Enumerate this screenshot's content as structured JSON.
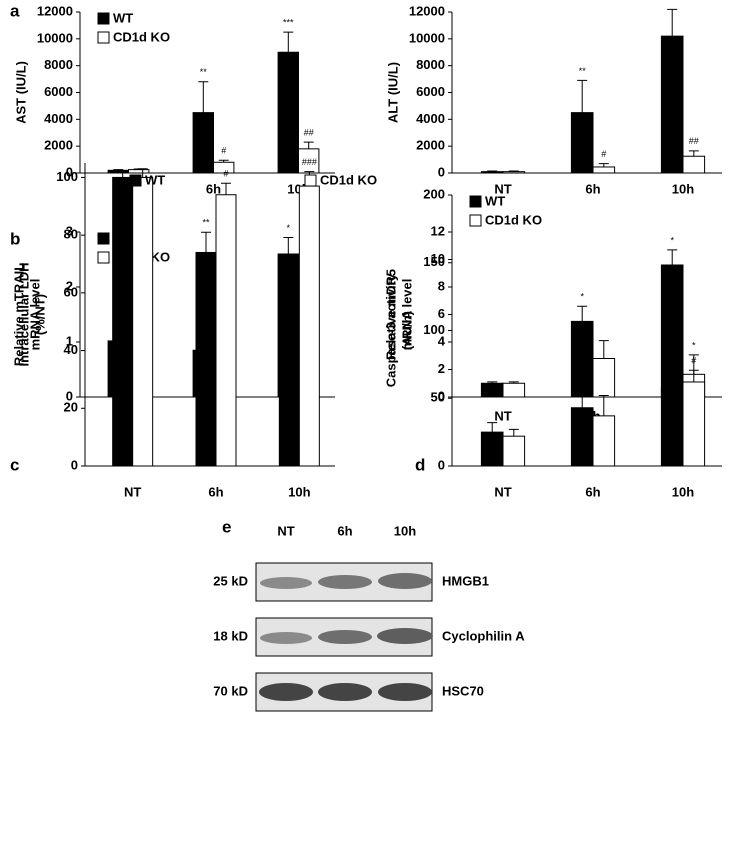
{
  "chart_data": [
    {
      "type": "bar",
      "panel": "a",
      "ylabel": [
        "AST (IU/L)"
      ],
      "categories": [
        "NT",
        "6h",
        "10h"
      ],
      "series": [
        {
          "name": "WT",
          "color": "#000000",
          "values": [
            200,
            4500,
            9000
          ],
          "errors": [
            50,
            2300,
            1500
          ],
          "annotations": [
            null,
            "**",
            "***"
          ]
        },
        {
          "name": "CD1d KO",
          "color": "#ffffff",
          "values": [
            250,
            800,
            1800
          ],
          "errors": [
            50,
            150,
            500
          ],
          "annotations": [
            null,
            "#",
            "##"
          ]
        }
      ],
      "ylim": [
        0,
        12000
      ],
      "yticks": [
        0,
        2000,
        4000,
        6000,
        8000,
        10000,
        12000
      ],
      "legend": "upper-left"
    },
    {
      "type": "bar",
      "ylabel": [
        "ALT (IU/L)"
      ],
      "categories": [
        "NT",
        "6h",
        "10h"
      ],
      "series": [
        {
          "color": "#000000",
          "values": [
            100,
            4500,
            10200
          ],
          "errors": [
            50,
            2400,
            2000
          ],
          "annotations": [
            null,
            "**",
            "**"
          ]
        },
        {
          "color": "#ffffff",
          "values": [
            100,
            450,
            1250
          ],
          "errors": [
            50,
            250,
            400
          ],
          "annotations": [
            null,
            "#",
            "##"
          ]
        }
      ],
      "ylim": [
        0,
        12000
      ],
      "yticks": [
        0,
        2000,
        4000,
        6000,
        8000,
        10000,
        12000
      ]
    },
    {
      "type": "bar",
      "panel": "b",
      "ylabel": [
        "Relative mTRAIL",
        "mRNA level"
      ],
      "categories": [
        "NT",
        "6h",
        "10h"
      ],
      "series": [
        {
          "name": "WT",
          "color": "#000000",
          "values": [
            1.02,
            0.85,
            2.6
          ],
          "errors": [
            0.1,
            0.13,
            0.3
          ],
          "annotations": [
            null,
            null,
            "*"
          ]
        },
        {
          "name": "CD1d KO",
          "color": "#ffffff",
          "values": [
            1.0,
            0.58,
            0.38
          ],
          "errors": [
            0.08,
            0.08,
            0.05
          ],
          "annotations": [
            null,
            null,
            "#"
          ]
        }
      ],
      "ylim": [
        0,
        3
      ],
      "yticks": [
        0,
        1,
        2,
        3
      ],
      "legend": "upper-left"
    },
    {
      "type": "bar",
      "ylabel": [
        "Relative mDR5",
        "mRNA level"
      ],
      "categories": [
        "NT",
        "6h",
        "10h"
      ],
      "series": [
        {
          "color": "#000000",
          "values": [
            1.0,
            5.5,
            9.6
          ],
          "errors": [
            0.1,
            1.1,
            1.1
          ],
          "annotations": [
            null,
            "*",
            "*"
          ]
        },
        {
          "color": "#ffffff",
          "values": [
            1.0,
            2.8,
            1.65
          ],
          "errors": [
            0.1,
            1.3,
            0.3
          ],
          "annotations": [
            null,
            null,
            "#"
          ]
        }
      ],
      "ylim": [
        0,
        12
      ],
      "yticks": [
        0,
        2,
        4,
        6,
        8,
        10,
        12
      ]
    },
    {
      "type": "bar",
      "panel": "c",
      "ylabel": [
        "Intracellular LDH",
        "(%/NT)"
      ],
      "categories": [
        "NT",
        "6h",
        "10h"
      ],
      "series": [
        {
          "name": "WT",
          "color": "#000000",
          "values": [
            100,
            74,
            52
          ],
          "errors": [
            2,
            7,
            10
          ],
          "annotations": [
            null,
            "**",
            "***"
          ]
        },
        {
          "name": "CD1d KO",
          "color": "#ffffff",
          "values": [
            100,
            94,
            97
          ],
          "errors": [
            3,
            4,
            5
          ],
          "annotations": [
            null,
            "#",
            "###"
          ]
        }
      ],
      "ylim": [
        0,
        105
      ],
      "yticks": [
        0,
        20,
        40,
        60,
        80,
        100
      ],
      "legend": "top"
    },
    {
      "type": "bar",
      "panel": "d",
      "ylabel": [
        "Caspase-3 activity",
        "(AU/h)"
      ],
      "categories": [
        "NT",
        "6h",
        "10h"
      ],
      "series": [
        {
          "name": "WT",
          "color": "#000000",
          "values": [
            25,
            43,
            58
          ],
          "errors": [
            7,
            12,
            13
          ],
          "annotations": [
            null,
            null,
            "*"
          ]
        },
        {
          "name": "CD1d KO",
          "color": "#ffffff",
          "values": [
            22,
            37,
            62
          ],
          "errors": [
            5,
            15,
            20
          ],
          "annotations": [
            null,
            null,
            "*"
          ]
        }
      ],
      "ylim": [
        0,
        200
      ],
      "yticks": [
        0,
        50,
        100,
        150,
        200
      ],
      "legend": "upper-left"
    }
  ],
  "blot": {
    "panel": "e",
    "lanes": [
      "NT",
      "6h",
      "10h"
    ],
    "rows": [
      {
        "size": "25 kD",
        "protein": "HMGB1"
      },
      {
        "size": "18 kD",
        "protein": "Cyclophilin A"
      },
      {
        "size": "70 kD",
        "protein": "HSC70"
      }
    ]
  }
}
